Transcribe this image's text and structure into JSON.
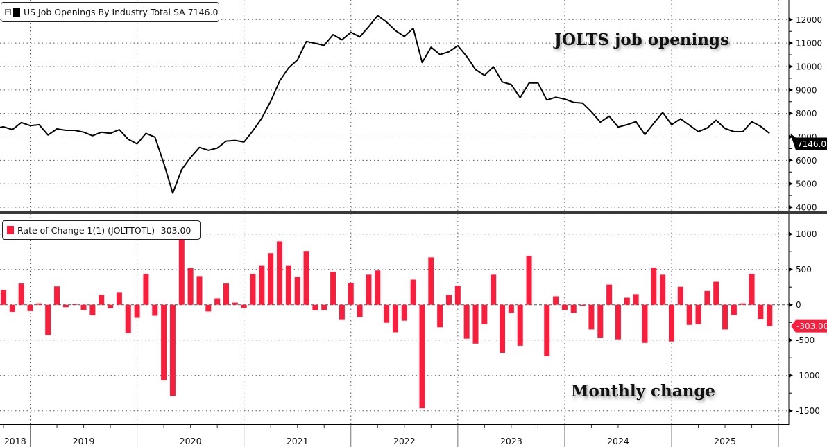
{
  "legend_top": {
    "label": "US Job Openings By Industry Total SA 7146.0",
    "expand_icon": "plus-box-icon"
  },
  "legend_bottom": {
    "label": "Rate of Change 1(1) (JOLTTOTL) -303.00"
  },
  "annotations": {
    "top": "JOLTS job openings",
    "bottom": "Monthly change"
  },
  "colors": {
    "line": "#000000",
    "bars": "#fa1e3c",
    "last_value_top_bg": "#000000",
    "last_value_bottom_bg": "#fa1e3c",
    "divider": "#3a3a3a"
  },
  "chart_data": [
    {
      "type": "line",
      "title": "",
      "series_label": "US Job Openings By Industry Total SA",
      "last_value_label": "7146.0",
      "yticks": [
        "4000",
        "5000",
        "6000",
        "7000",
        "8000",
        "9000",
        "10000",
        "11000",
        "12000"
      ],
      "ylim": [
        4000,
        12000
      ],
      "grid": true,
      "axis_side": "right",
      "x": [
        "2018-08",
        "2018-09",
        "2018-10",
        "2018-11",
        "2018-12",
        "2019-01",
        "2019-02",
        "2019-03",
        "2019-04",
        "2019-05",
        "2019-06",
        "2019-07",
        "2019-08",
        "2019-09",
        "2019-10",
        "2019-11",
        "2019-12",
        "2020-01",
        "2020-02",
        "2020-03",
        "2020-04",
        "2020-05",
        "2020-06",
        "2020-07",
        "2020-08",
        "2020-09",
        "2020-10",
        "2020-11",
        "2020-12",
        "2021-01",
        "2021-02",
        "2021-03",
        "2021-04",
        "2021-05",
        "2021-06",
        "2021-07",
        "2021-08",
        "2021-09",
        "2021-10",
        "2021-11",
        "2021-12",
        "2022-01",
        "2022-02",
        "2022-03",
        "2022-04",
        "2022-05",
        "2022-06",
        "2022-07",
        "2022-08",
        "2022-09",
        "2022-10",
        "2022-11",
        "2022-12",
        "2023-01",
        "2023-02",
        "2023-03",
        "2023-04",
        "2023-05",
        "2023-06",
        "2023-07",
        "2023-08",
        "2023-09",
        "2023-10",
        "2023-11",
        "2023-12",
        "2024-01",
        "2024-02",
        "2024-03",
        "2024-04",
        "2024-05",
        "2024-06",
        "2024-07",
        "2024-08",
        "2024-09",
        "2024-10",
        "2024-11",
        "2024-12",
        "2025-01",
        "2025-02",
        "2025-03",
        "2025-04",
        "2025-05",
        "2025-06",
        "2025-07",
        "2025-08",
        "2025-09",
        "2025-10",
        "2025-11"
      ],
      "values": [
        7350,
        7430,
        7310,
        7610,
        7480,
        7520,
        7080,
        7340,
        7280,
        7280,
        7200,
        7050,
        7200,
        7150,
        7310,
        6900,
        6700,
        7150,
        6990,
        5870,
        4600,
        5600,
        6120,
        6550,
        6430,
        6520,
        6820,
        6850,
        6780,
        7260,
        7800,
        8520,
        9380,
        9940,
        10280,
        11070,
        10990,
        10900,
        11360,
        11140,
        11460,
        11260,
        11700,
        12170,
        11900,
        11530,
        11280,
        11630,
        10170,
        10820,
        10510,
        10630,
        10890,
        10430,
        9870,
        9620,
        9990,
        9340,
        9230,
        8670,
        9300,
        9300,
        8570,
        8690,
        8610,
        8470,
        8440,
        8070,
        7630,
        7880,
        7420,
        7520,
        7650,
        7100,
        7580,
        8040,
        7520,
        7770,
        7500,
        7220,
        7380,
        7710,
        7360,
        7220,
        7220,
        7650,
        7450,
        7146
      ]
    },
    {
      "type": "bar",
      "title": "",
      "series_label": "Rate of Change 1(1) (JOLTTOTL)",
      "last_value_label": "-303.00",
      "yticks": [
        "-1500",
        "-1000",
        "-500",
        "0",
        "500",
        "1000"
      ],
      "ylim": [
        -1700,
        1250
      ],
      "grid": true,
      "axis_side": "right",
      "values": [
        null,
        210,
        -100,
        300,
        -90,
        20,
        -430,
        260,
        -35,
        10,
        -75,
        -150,
        140,
        -50,
        170,
        -400,
        -185,
        435,
        -155,
        -1070,
        -1290,
        950,
        520,
        405,
        -95,
        90,
        300,
        30,
        -45,
        435,
        550,
        730,
        895,
        550,
        395,
        760,
        -80,
        -75,
        465,
        -215,
        310,
        -175,
        425,
        485,
        -255,
        -390,
        -225,
        355,
        -1465,
        670,
        -320,
        140,
        270,
        -480,
        -550,
        -275,
        425,
        -680,
        -115,
        -580,
        690,
        0,
        -725,
        120,
        -75,
        -115,
        -15,
        -350,
        -465,
        285,
        -490,
        100,
        150,
        -540,
        525,
        425,
        -520,
        255,
        -285,
        -275,
        195,
        325,
        -350,
        -145,
        20,
        435,
        -205,
        -303
      ]
    }
  ],
  "x_axis": {
    "years": [
      "2018",
      "2019",
      "2020",
      "2021",
      "2022",
      "2023",
      "2024",
      "2025"
    ]
  }
}
